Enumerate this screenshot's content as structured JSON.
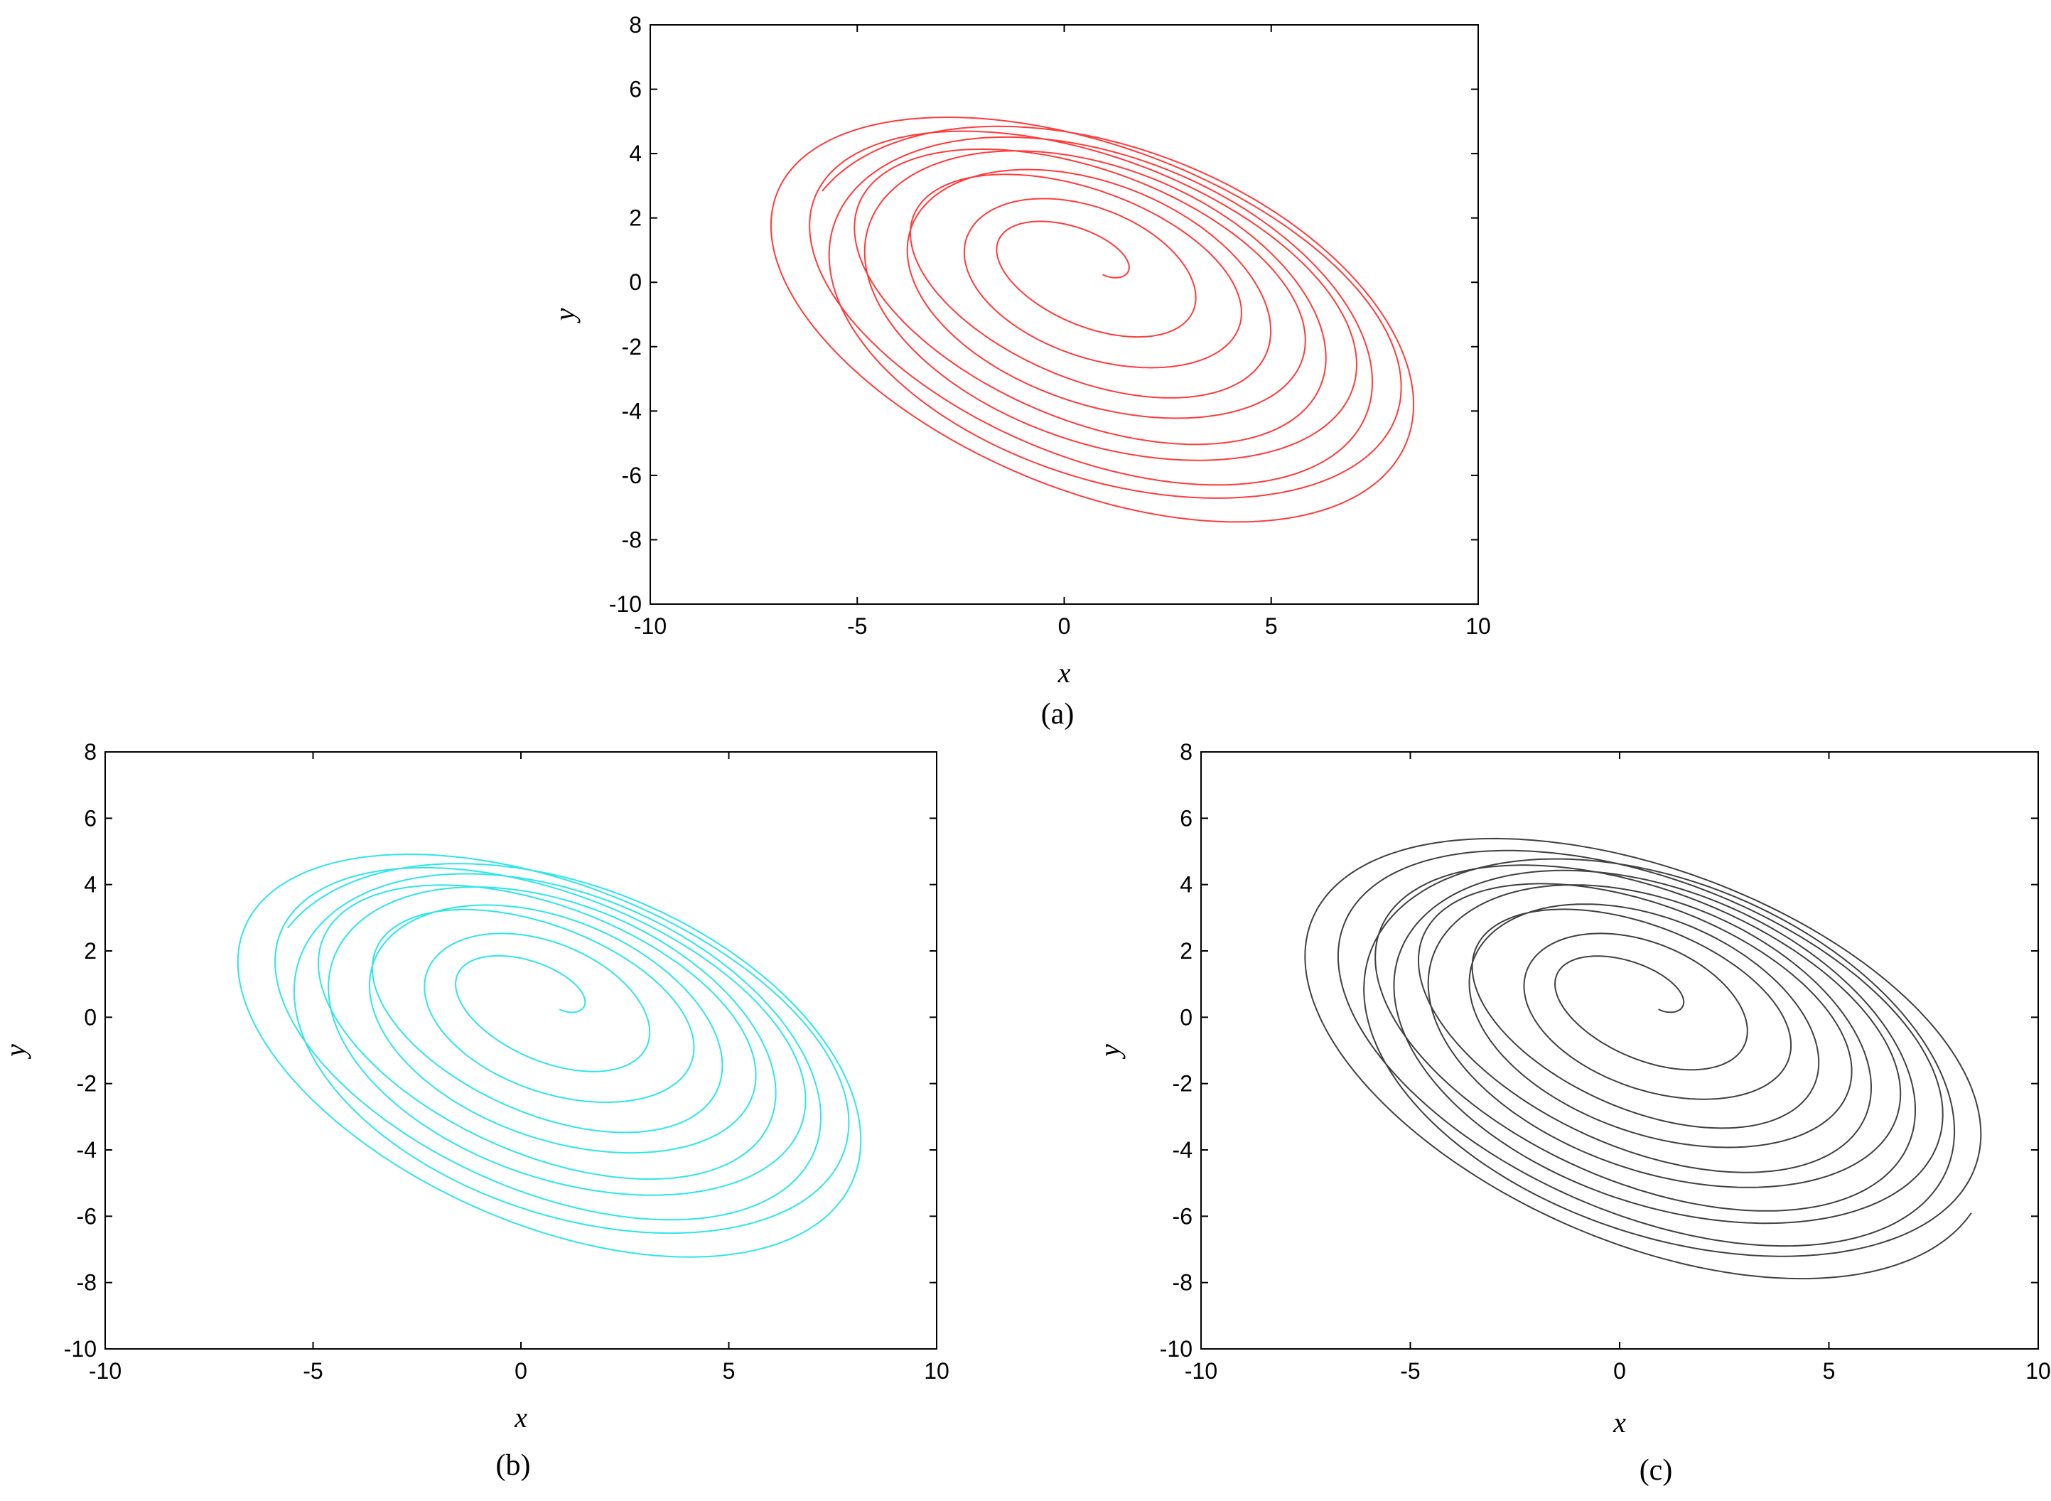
{
  "chart_data": [
    {
      "type": "line",
      "panel": "(a)",
      "xlabel": "x",
      "ylabel": "y",
      "xlim": [
        -10,
        10
      ],
      "ylim": [
        -10,
        8
      ],
      "xticks": [
        -10,
        -5,
        0,
        5,
        10
      ],
      "yticks": [
        -10,
        -8,
        -6,
        -4,
        -2,
        0,
        2,
        4,
        6,
        8
      ],
      "xtick_labels": [
        "-10",
        "-5",
        "0",
        "5",
        "10"
      ],
      "ytick_labels": [
        "-10",
        "-8",
        "-6",
        "-4",
        "-2",
        "0",
        "2",
        "4",
        "6",
        "8"
      ],
      "series": [
        {
          "color": "#ff3b3b",
          "curve": "spiral-attractor",
          "start": [
            0.5,
            0.5
          ],
          "turns": 9.5,
          "max_radius": 8.6
        }
      ],
      "grid": false
    },
    {
      "type": "line",
      "panel": "(b)",
      "xlabel": "x",
      "ylabel": "y",
      "xlim": [
        -10,
        10
      ],
      "ylim": [
        -10,
        8
      ],
      "xticks": [
        -10,
        -5,
        0,
        5,
        10
      ],
      "yticks": [
        -10,
        -8,
        -6,
        -4,
        -2,
        0,
        2,
        4,
        6,
        8
      ],
      "xtick_labels": [
        "-10",
        "-5",
        "0",
        "5",
        "10"
      ],
      "ytick_labels": [
        "-10",
        "-8",
        "-6",
        "-4",
        "-2",
        "0",
        "2",
        "4",
        "6",
        "8"
      ],
      "series": [
        {
          "color": "#2ee6e6",
          "curve": "spiral-attractor",
          "start": [
            0.5,
            0.5
          ],
          "turns": 9.5,
          "max_radius": 8.3
        }
      ],
      "grid": false
    },
    {
      "type": "line",
      "panel": "(c)",
      "xlabel": "x",
      "ylabel": "y",
      "xlim": [
        -10,
        10
      ],
      "ylim": [
        -10,
        8
      ],
      "xticks": [
        -10,
        -5,
        0,
        5,
        10
      ],
      "yticks": [
        -10,
        -8,
        -6,
        -4,
        -2,
        0,
        2,
        4,
        6,
        8
      ],
      "xtick_labels": [
        "-10",
        "-5",
        "0",
        "5",
        "10"
      ],
      "ytick_labels": [
        "-10",
        "-8",
        "-6",
        "-4",
        "-2",
        "0",
        "2",
        "4",
        "6",
        "8"
      ],
      "series": [
        {
          "color": "#404040",
          "curve": "spiral-attractor",
          "start": [
            0.5,
            0.5
          ],
          "turns": 11,
          "max_radius": 8.8
        }
      ],
      "grid": false
    }
  ]
}
